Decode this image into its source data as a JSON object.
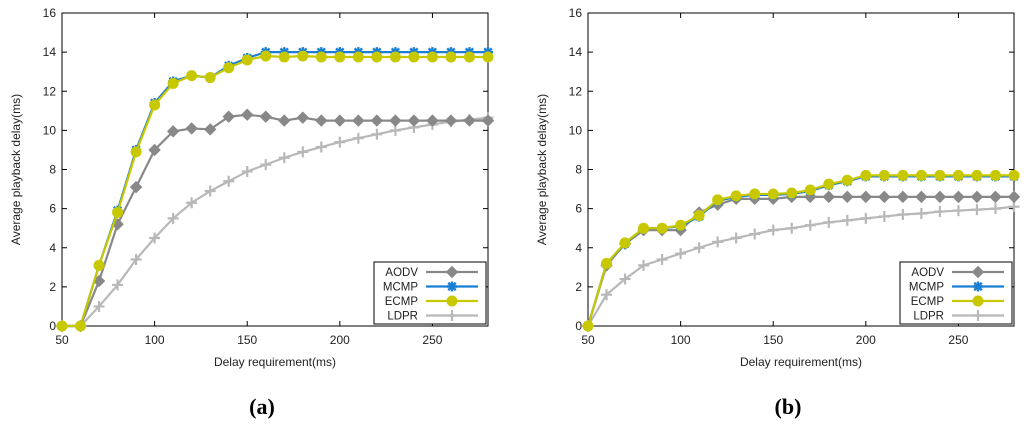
{
  "chart_data": [
    {
      "type": "line",
      "panel_label": "(a)",
      "xlabel": "Delay requirement(ms)",
      "ylabel": "Average playback delay(ms)",
      "xlim": [
        50,
        280
      ],
      "ylim": [
        0,
        16
      ],
      "xticks": [
        50,
        100,
        150,
        200,
        250
      ],
      "yticks": [
        0,
        2,
        4,
        6,
        8,
        10,
        12,
        14,
        16
      ],
      "x": [
        50,
        60,
        70,
        80,
        90,
        100,
        110,
        120,
        130,
        140,
        150,
        160,
        170,
        180,
        190,
        200,
        210,
        220,
        230,
        240,
        250,
        260,
        270,
        280
      ],
      "series": [
        {
          "name": "AODV",
          "color": "#888888",
          "marker": "diamond",
          "values": [
            0,
            0,
            2.3,
            5.2,
            7.1,
            9.0,
            9.95,
            10.1,
            10.05,
            10.7,
            10.8,
            10.7,
            10.5,
            10.65,
            10.5,
            10.5,
            10.5,
            10.5,
            10.5,
            10.5,
            10.5,
            10.5,
            10.5,
            10.5
          ]
        },
        {
          "name": "MCMP",
          "color": "#1a7fd4",
          "marker": "star",
          "values": [
            0,
            0,
            3.1,
            5.9,
            9.0,
            11.4,
            12.5,
            12.8,
            12.7,
            13.3,
            13.7,
            14.0,
            14.0,
            14.0,
            14.0,
            14.0,
            14.0,
            14.0,
            14.0,
            14.0,
            14.0,
            14.0,
            14.0,
            14.0
          ]
        },
        {
          "name": "ECMP",
          "color": "#c8c800",
          "marker": "circle",
          "values": [
            0,
            0,
            3.1,
            5.8,
            8.9,
            11.3,
            12.4,
            12.8,
            12.7,
            13.2,
            13.6,
            13.8,
            13.75,
            13.8,
            13.75,
            13.75,
            13.75,
            13.75,
            13.75,
            13.75,
            13.75,
            13.75,
            13.75,
            13.75
          ]
        },
        {
          "name": "LDPR",
          "color": "#b8b8b8",
          "marker": "plus",
          "values": [
            0,
            0,
            1.0,
            2.1,
            3.4,
            4.5,
            5.5,
            6.3,
            6.9,
            7.4,
            7.9,
            8.25,
            8.6,
            8.9,
            9.15,
            9.4,
            9.6,
            9.8,
            10.0,
            10.15,
            10.3,
            10.45,
            10.55,
            10.65
          ]
        }
      ]
    },
    {
      "type": "line",
      "panel_label": "(b)",
      "xlabel": "Delay requirement(ms)",
      "ylabel": "Average playback delay(ms)",
      "xlim": [
        50,
        280
      ],
      "ylim": [
        0,
        16
      ],
      "xticks": [
        50,
        100,
        150,
        200,
        250
      ],
      "yticks": [
        0,
        2,
        4,
        6,
        8,
        10,
        12,
        14,
        16
      ],
      "x": [
        50,
        60,
        70,
        80,
        90,
        100,
        110,
        120,
        130,
        140,
        150,
        160,
        170,
        180,
        190,
        200,
        210,
        220,
        230,
        240,
        250,
        260,
        270,
        280
      ],
      "series": [
        {
          "name": "AODV",
          "color": "#888888",
          "marker": "diamond",
          "values": [
            0,
            3.1,
            4.2,
            4.9,
            4.9,
            4.9,
            5.8,
            6.2,
            6.5,
            6.5,
            6.5,
            6.6,
            6.6,
            6.6,
            6.6,
            6.6,
            6.6,
            6.6,
            6.6,
            6.6,
            6.6,
            6.6,
            6.6,
            6.6
          ]
        },
        {
          "name": "MCMP",
          "color": "#1a7fd4",
          "marker": "star",
          "values": [
            0,
            3.2,
            4.2,
            5.0,
            5.0,
            5.1,
            5.6,
            6.4,
            6.6,
            6.7,
            6.7,
            6.75,
            6.9,
            7.2,
            7.4,
            7.65,
            7.65,
            7.65,
            7.65,
            7.65,
            7.65,
            7.65,
            7.65,
            7.65
          ]
        },
        {
          "name": "ECMP",
          "color": "#c8c800",
          "marker": "circle",
          "values": [
            0,
            3.2,
            4.25,
            5.0,
            5.0,
            5.15,
            5.65,
            6.45,
            6.65,
            6.75,
            6.75,
            6.8,
            6.95,
            7.25,
            7.45,
            7.7,
            7.7,
            7.7,
            7.7,
            7.7,
            7.7,
            7.7,
            7.7,
            7.7
          ]
        },
        {
          "name": "LDPR",
          "color": "#b8b8b8",
          "marker": "plus",
          "values": [
            0,
            1.6,
            2.4,
            3.1,
            3.4,
            3.7,
            4.0,
            4.3,
            4.5,
            4.7,
            4.9,
            5.0,
            5.15,
            5.3,
            5.4,
            5.5,
            5.6,
            5.7,
            5.75,
            5.85,
            5.9,
            5.95,
            6.0,
            6.1
          ]
        }
      ]
    }
  ]
}
